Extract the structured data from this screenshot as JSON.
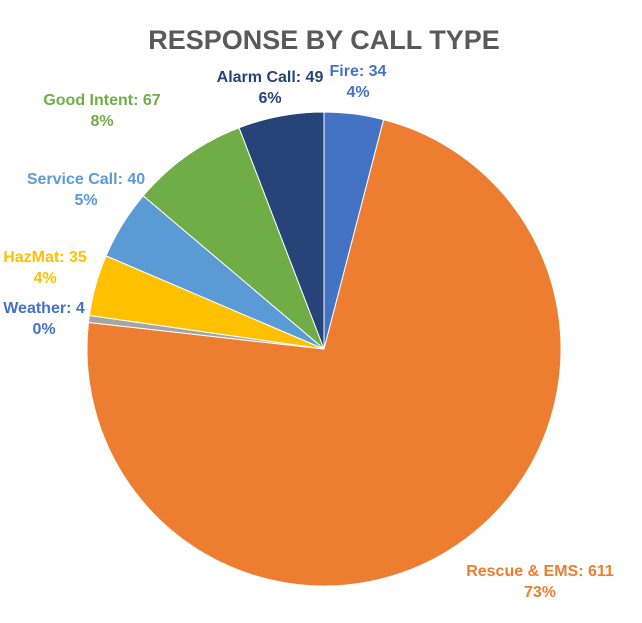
{
  "chart_data": {
    "type": "pie",
    "title": "RESPONSE BY CALL TYPE",
    "values": [
      34,
      611,
      4,
      35,
      40,
      67,
      49
    ],
    "value_labels": [
      "Fire: 34",
      "Rescue & EMS: 611",
      "Weather: 4",
      "HazMat: 35",
      "Service Call: 40",
      "Good Intent: 67",
      "Alarm Call: 49"
    ],
    "percent_labels": [
      "4%",
      "73%",
      "0%",
      "4%",
      "5%",
      "8%",
      "6%"
    ],
    "colors": [
      "#4472c4",
      "#ed7d31",
      "#a5a5a5",
      "#ffc000",
      "#5b9bd5",
      "#70ad47",
      "#264478"
    ],
    "label_colors": [
      "#4472c4",
      "#ed7d31",
      "#4472c4",
      "#ffc000",
      "#5b9bd5",
      "#70ad47",
      "#264478"
    ]
  }
}
